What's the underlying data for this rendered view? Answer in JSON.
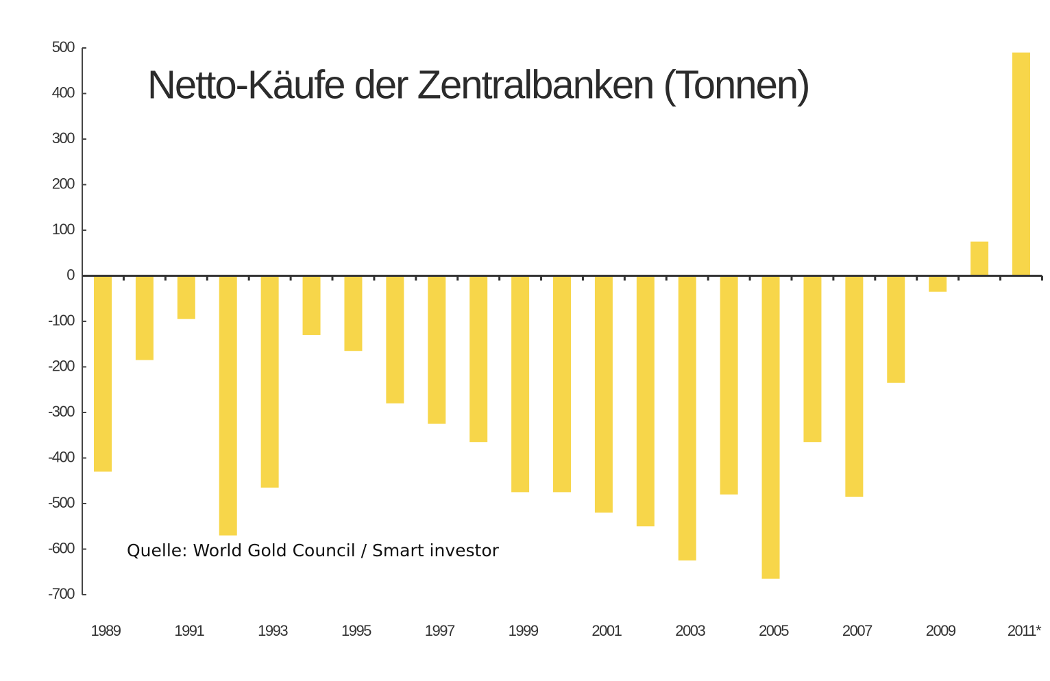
{
  "chart_data": {
    "type": "bar",
    "title": "Netto-Käufe der Zentralbanken (Tonnen)",
    "annotation": "Quelle: World Gold Council / Smart investor",
    "categories": [
      "1989",
      null,
      "1991",
      null,
      "1993",
      null,
      "1995",
      null,
      "1997",
      null,
      "1999",
      null,
      "2001",
      null,
      "2003",
      null,
      "2005",
      null,
      "2007",
      null,
      "2009",
      null,
      "2011*"
    ],
    "values": [
      -430,
      -185,
      -95,
      -570,
      -465,
      -130,
      -165,
      -280,
      -325,
      -365,
      -475,
      -475,
      -520,
      -550,
      -625,
      -480,
      -665,
      -365,
      -485,
      -235,
      -35,
      75,
      490
    ],
    "color": "#f7d64a",
    "ylim": [
      -700,
      500
    ],
    "yticks": [
      -700,
      -600,
      -500,
      -400,
      -300,
      -200,
      -100,
      0,
      100,
      200,
      300,
      400,
      500
    ],
    "grid": false
  }
}
